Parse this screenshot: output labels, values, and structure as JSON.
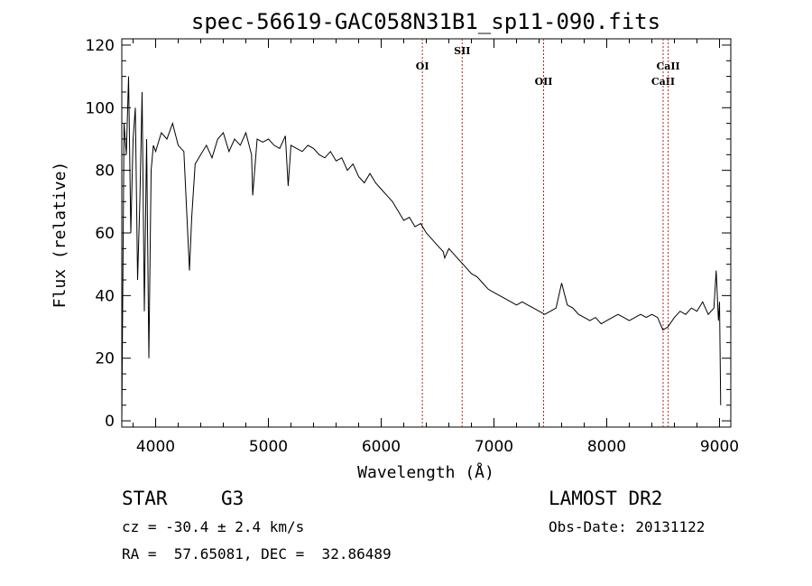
{
  "chart_data": {
    "type": "line",
    "title": "spec-56619-GAC058N31B1_sp11-090.fits",
    "xlabel": "Wavelength (Å)",
    "ylabel": "Flux (relative)",
    "xlim": [
      3700,
      9100
    ],
    "ylim": [
      -2,
      122
    ],
    "x_ticks": [
      4000,
      5000,
      6000,
      7000,
      8000,
      9000
    ],
    "y_ticks": [
      0,
      20,
      40,
      60,
      80,
      100,
      120
    ],
    "grid": false,
    "series": [
      {
        "x": [
          3700,
          3720,
          3740,
          3760,
          3780,
          3800,
          3820,
          3840,
          3860,
          3880,
          3900,
          3920,
          3940,
          3960,
          3980,
          4000,
          4050,
          4100,
          4150,
          4200,
          4250,
          4300,
          4320,
          4350,
          4400,
          4450,
          4500,
          4550,
          4600,
          4650,
          4700,
          4750,
          4800,
          4850,
          4861,
          4900,
          4950,
          5000,
          5050,
          5100,
          5150,
          5175,
          5200,
          5250,
          5300,
          5350,
          5400,
          5450,
          5500,
          5550,
          5600,
          5650,
          5700,
          5750,
          5800,
          5850,
          5900,
          5950,
          6000,
          6050,
          6100,
          6150,
          6200,
          6250,
          6300,
          6350,
          6400,
          6450,
          6500,
          6550,
          6563,
          6600,
          6650,
          6700,
          6750,
          6800,
          6850,
          6900,
          6950,
          7000,
          7050,
          7100,
          7150,
          7200,
          7250,
          7300,
          7350,
          7400,
          7450,
          7500,
          7550,
          7600,
          7650,
          7700,
          7750,
          7800,
          7850,
          7900,
          7950,
          8000,
          8050,
          8100,
          8150,
          8200,
          8250,
          8300,
          8350,
          8400,
          8450,
          8498,
          8542,
          8600,
          8650,
          8700,
          8750,
          8800,
          8850,
          8900,
          8950,
          8970,
          8990,
          9000,
          9010
        ],
        "y": [
          0,
          95,
          85,
          110,
          60,
          90,
          100,
          45,
          70,
          105,
          35,
          90,
          20,
          80,
          88,
          86,
          92,
          90,
          95,
          88,
          86,
          48,
          65,
          82,
          85,
          88,
          84,
          90,
          92,
          86,
          90,
          88,
          92,
          85,
          72,
          90,
          89,
          90,
          88,
          87,
          91,
          75,
          88,
          87,
          86,
          88,
          87,
          85,
          84,
          86,
          83,
          84,
          80,
          82,
          78,
          76,
          79,
          76,
          74,
          72,
          70,
          67,
          64,
          65,
          62,
          63,
          60,
          58,
          56,
          54,
          52,
          55,
          53,
          51,
          49,
          47,
          46,
          44,
          42,
          41,
          40,
          39,
          38,
          37,
          38,
          37,
          36,
          35,
          34,
          35,
          36,
          44,
          37,
          36,
          34,
          33,
          32,
          33,
          31,
          32,
          33,
          34,
          33,
          32,
          33,
          34,
          33,
          34,
          33,
          29,
          30,
          33,
          35,
          34,
          36,
          35,
          38,
          34,
          36,
          48,
          32,
          38,
          5
        ]
      }
    ],
    "lines": [
      {
        "label": "OI",
        "x": 6365,
        "tier": 1
      },
      {
        "label": "SII",
        "x": 6718,
        "tier": 0
      },
      {
        "label": "OII",
        "x": 7440,
        "tier": 2
      },
      {
        "label": "CaII",
        "x": 8500,
        "tier": 2
      },
      {
        "label": "CaII",
        "x": 8545,
        "tier": 1
      }
    ]
  },
  "info": {
    "class_label": "STAR",
    "subclass_label": "G3",
    "survey": "LAMOST DR2",
    "velocity": "cz = -30.4 ± 2.4 km/s",
    "obs_date": "Obs-Date: 20131122",
    "coords": "RA =  57.65081, DEC =  32.86489"
  }
}
